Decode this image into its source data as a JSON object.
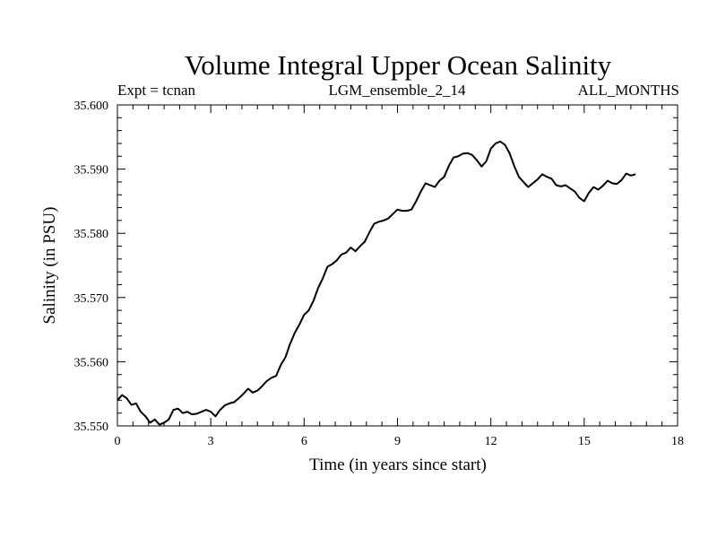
{
  "chart_data": {
    "type": "line",
    "title": "Volume Integral Upper Ocean Salinity",
    "subtitle_left": "Expt = tcnan",
    "subtitle_center": "LGM_ensemble_2_14",
    "subtitle_right": "ALL_MONTHS",
    "xlabel": "Time (in years since start)",
    "ylabel": "Salinity (in PSU)",
    "xlim": [
      0,
      18
    ],
    "ylim": [
      35.55,
      35.6
    ],
    "x_ticks": [
      0,
      3,
      6,
      9,
      12,
      15,
      18
    ],
    "x_tick_labels": [
      "0",
      "3",
      "6",
      "9",
      "12",
      "15",
      "18"
    ],
    "y_ticks": [
      35.55,
      35.56,
      35.57,
      35.58,
      35.59,
      35.6
    ],
    "y_tick_labels": [
      "35.550",
      "35.560",
      "35.570",
      "35.580",
      "35.590",
      "35.600"
    ],
    "grid": false,
    "series": [
      {
        "name": "Salinity",
        "color": "#000000",
        "x": [
          0.0,
          0.15,
          0.3,
          0.45,
          0.6,
          0.75,
          0.9,
          1.05,
          1.2,
          1.35,
          1.5,
          1.65,
          1.8,
          1.95,
          2.1,
          2.25,
          2.4,
          2.55,
          2.7,
          2.85,
          3.0,
          3.15,
          3.3,
          3.45,
          3.6,
          3.75,
          3.9,
          4.05,
          4.2,
          4.35,
          4.5,
          4.65,
          4.8,
          4.95,
          5.1,
          5.25,
          5.4,
          5.55,
          5.7,
          5.85,
          6.0,
          6.15,
          6.3,
          6.45,
          6.6,
          6.75,
          6.9,
          7.05,
          7.2,
          7.35,
          7.5,
          7.65,
          7.8,
          7.95,
          8.1,
          8.25,
          8.4,
          8.55,
          8.7,
          8.85,
          9.0,
          9.15,
          9.3,
          9.45,
          9.6,
          9.75,
          9.9,
          10.05,
          10.2,
          10.35,
          10.5,
          10.65,
          10.8,
          10.95,
          11.1,
          11.25,
          11.4,
          11.55,
          11.7,
          11.85,
          12.0,
          12.15,
          12.3,
          12.45,
          12.6,
          12.75,
          12.9,
          13.05,
          13.2,
          13.35,
          13.5,
          13.65,
          13.8,
          13.95,
          14.1,
          14.25,
          14.4,
          14.55,
          14.7,
          14.85,
          15.0,
          15.15,
          15.3,
          15.45,
          15.6,
          15.75,
          15.9,
          16.05,
          16.2,
          16.35,
          16.5,
          16.65
        ],
        "values": [
          35.554,
          35.5548,
          35.5543,
          35.5533,
          35.5535,
          35.5522,
          35.5515,
          35.5505,
          35.551,
          35.5502,
          35.5505,
          35.551,
          35.5525,
          35.5527,
          35.552,
          35.5522,
          35.5518,
          35.5519,
          35.5522,
          35.5525,
          35.5522,
          35.5515,
          35.5525,
          35.5532,
          35.5535,
          35.5537,
          35.5543,
          35.555,
          35.5558,
          35.5552,
          35.5555,
          35.5562,
          35.557,
          35.5575,
          35.5578,
          35.5595,
          35.5607,
          35.5628,
          35.5645,
          35.5658,
          35.5673,
          35.568,
          35.5695,
          35.5715,
          35.573,
          35.5748,
          35.5752,
          35.5758,
          35.5767,
          35.577,
          35.5778,
          35.5772,
          35.578,
          35.5787,
          35.5802,
          35.5815,
          35.5818,
          35.582,
          35.5823,
          35.583,
          35.5837,
          35.5835,
          35.5835,
          35.5837,
          35.585,
          35.5865,
          35.5878,
          35.5875,
          35.5872,
          35.5882,
          35.5888,
          35.5905,
          35.5918,
          35.592,
          35.5924,
          35.5925,
          35.5922,
          35.5914,
          35.5904,
          35.5912,
          35.5932,
          35.594,
          35.5943,
          35.5938,
          35.5925,
          35.5905,
          35.5888,
          35.588,
          35.5872,
          35.5878,
          35.5884,
          35.5892,
          35.5888,
          35.5885,
          35.5875,
          35.5873,
          35.5875,
          35.587,
          35.5865,
          35.5855,
          35.585,
          35.5863,
          35.5872,
          35.5868,
          35.5874,
          35.5882,
          35.5878,
          35.5877,
          35.5883,
          35.5893,
          35.589,
          35.5892
        ]
      }
    ]
  }
}
